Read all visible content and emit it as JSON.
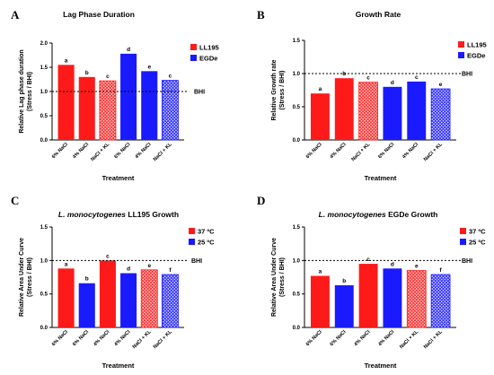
{
  "chart_data": [
    {
      "panel": "A",
      "type": "bar",
      "title": "Lag Phase Duration",
      "title_italic": "",
      "ylabel_line1": "Relative Lag phase duration",
      "ylabel_line2": "(Stress / BHI)",
      "xlabel": "Treatment",
      "ylim": [
        0,
        2.0
      ],
      "yticks": [
        "0.0",
        "0.5",
        "1.0",
        "1.5",
        "2.0"
      ],
      "reference_line": {
        "value": 1.0,
        "label": "BHI"
      },
      "legend": [
        {
          "name": "LL195",
          "color": "#ff1a1a"
        },
        {
          "name": "EGDe",
          "color": "#1a1aff"
        }
      ],
      "categories": [
        "6% NaCl",
        "4% NaCl",
        "NaCl + KL",
        "6% NaCl",
        "4% NaCl",
        "NaCl + KL"
      ],
      "values": [
        1.55,
        1.3,
        1.22,
        1.78,
        1.42,
        1.23
      ],
      "colors": [
        "#ff1a1a",
        "#ff1a1a",
        "#ff1a1a",
        "#1a1aff",
        "#1a1aff",
        "#1a1aff"
      ],
      "hatched": [
        false,
        false,
        true,
        false,
        false,
        true
      ],
      "letters": [
        "a",
        "b",
        "c",
        "d",
        "e",
        "c"
      ]
    },
    {
      "panel": "B",
      "type": "bar",
      "title": "Growth Rate",
      "title_italic": "",
      "ylabel_line1": "Relative Growth rate",
      "ylabel_line2": "(Stress / BHI)",
      "xlabel": "Treatment",
      "ylim": [
        0,
        1.5
      ],
      "yticks": [
        "0.0",
        "0.5",
        "1.0",
        "1.5"
      ],
      "reference_line": {
        "value": 1.0,
        "label": "BHI"
      },
      "legend": [
        {
          "name": "LL195",
          "color": "#ff1a1a"
        },
        {
          "name": "EGDe",
          "color": "#1a1aff"
        }
      ],
      "categories": [
        "6% NaCl",
        "4% NaCl",
        "NaCl + KL",
        "6% NaCl",
        "4% NaCl",
        "NaCl + KL"
      ],
      "values": [
        0.7,
        0.93,
        0.87,
        0.8,
        0.88,
        0.77
      ],
      "colors": [
        "#ff1a1a",
        "#ff1a1a",
        "#ff1a1a",
        "#1a1aff",
        "#1a1aff",
        "#1a1aff"
      ],
      "hatched": [
        false,
        false,
        true,
        false,
        false,
        true
      ],
      "letters": [
        "a",
        "b",
        "c",
        "d",
        "c",
        "e"
      ]
    },
    {
      "panel": "C",
      "type": "bar",
      "title": "LL195 Growth",
      "title_italic": "L. monocytogenes",
      "ylabel_line1": "Relative Area Under Curve",
      "ylabel_line2": "(Stress / BHI)",
      "xlabel": "Treatment",
      "ylim": [
        0,
        1.5
      ],
      "yticks": [
        "0.0",
        "0.5",
        "1.0",
        "1.5"
      ],
      "reference_line": {
        "value": 1.0,
        "label": "BHI"
      },
      "legend": [
        {
          "name": "37 ºC",
          "color": "#ff1a1a"
        },
        {
          "name": "25 ºC",
          "color": "#1a1aff"
        }
      ],
      "categories": [
        "6% NaCl",
        "6% NaCl",
        "4% NaCl",
        "4% NaCl",
        "NaCl + KL",
        "NaCl + KL"
      ],
      "values": [
        0.88,
        0.66,
        1.0,
        0.81,
        0.86,
        0.79
      ],
      "colors": [
        "#ff1a1a",
        "#1a1aff",
        "#ff1a1a",
        "#1a1aff",
        "#ff1a1a",
        "#1a1aff"
      ],
      "hatched": [
        false,
        false,
        false,
        false,
        true,
        true
      ],
      "letters": [
        "a",
        "b",
        "c",
        "d",
        "e",
        "f"
      ]
    },
    {
      "panel": "D",
      "type": "bar",
      "title": "EGDe Growth",
      "title_italic": "L. monocytogenes",
      "ylabel_line1": "Relative Area Under Curve",
      "ylabel_line2": "(Stress / BHI)",
      "xlabel": "Treatment",
      "ylim": [
        0,
        1.5
      ],
      "yticks": [
        "0.0",
        "0.5",
        "1.0",
        "1.5"
      ],
      "reference_line": {
        "value": 1.0,
        "label": "BHI"
      },
      "legend": [
        {
          "name": "37 ºC",
          "color": "#ff1a1a"
        },
        {
          "name": "25 ºC",
          "color": "#1a1aff"
        }
      ],
      "categories": [
        "6% NaCl",
        "6% NaCl",
        "4% NaCl",
        "4% NaCl",
        "NaCl + KL",
        "NaCl + KL"
      ],
      "values": [
        0.77,
        0.63,
        0.95,
        0.88,
        0.85,
        0.79
      ],
      "colors": [
        "#ff1a1a",
        "#1a1aff",
        "#ff1a1a",
        "#1a1aff",
        "#ff1a1a",
        "#1a1aff"
      ],
      "hatched": [
        false,
        false,
        false,
        false,
        true,
        true
      ],
      "letters": [
        "a",
        "b",
        "c",
        "d",
        "e",
        "f"
      ]
    }
  ]
}
